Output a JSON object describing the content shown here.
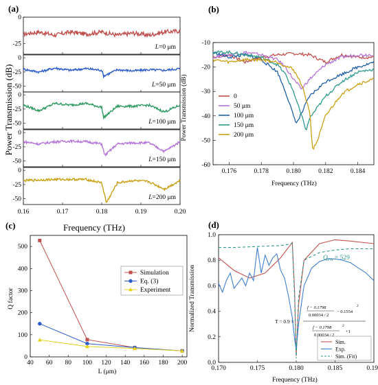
{
  "figure": {
    "panel_labels": [
      "(a)",
      "(b)",
      "(c)",
      "(d)"
    ]
  },
  "chart_data": [
    {
      "panel": "(a)",
      "type": "line",
      "xlabel": "Frequency (THz)",
      "ylabel": "Power Transmission (dB)",
      "xlim": [
        0.16,
        0.2
      ],
      "xticks": [
        "0.16",
        "0.17",
        "0.18",
        "0.19",
        "0.20"
      ],
      "subplots": [
        {
          "label": "L=0 μm",
          "color": "#c0504d",
          "ylim": [
            -35,
            0
          ],
          "yticks": [
            "0",
            "-25"
          ],
          "baseline": -15,
          "dip_at": null,
          "dip_depth": 0,
          "x": [
            0.16,
            0.164,
            0.168,
            0.172,
            0.176,
            0.18,
            0.184,
            0.188,
            0.192,
            0.196,
            0.2
          ],
          "y": [
            -16,
            -14,
            -17,
            -14,
            -16,
            -14,
            -17,
            -15,
            -17,
            -14,
            -13
          ]
        },
        {
          "label": "L=50 μm",
          "color": "#2a5cc9",
          "ylim": [
            -60,
            5
          ],
          "yticks": [
            "0",
            "-25",
            "-50"
          ],
          "baseline": -20,
          "dip_at": 0.1805,
          "dip_depth": -32,
          "x": [
            0.16,
            0.164,
            0.168,
            0.172,
            0.176,
            0.18,
            0.1805,
            0.184,
            0.188,
            0.192,
            0.196,
            0.2
          ],
          "y": [
            -20,
            -25,
            -18,
            -22,
            -19,
            -22,
            -32,
            -21,
            -23,
            -21,
            -22,
            -19
          ]
        },
        {
          "label": "L=100 μm",
          "color": "#2e9a62",
          "ylim": [
            -60,
            5
          ],
          "yticks": [
            "0",
            "-25",
            "-50"
          ],
          "baseline": -15,
          "dip_at": 0.1805,
          "dip_depth": -40,
          "x": [
            0.16,
            0.164,
            0.168,
            0.172,
            0.176,
            0.18,
            0.1805,
            0.184,
            0.188,
            0.192,
            0.196,
            0.2
          ],
          "y": [
            -18,
            -28,
            -15,
            -18,
            -15,
            -22,
            -40,
            -20,
            -20,
            -18,
            -30,
            -18
          ]
        },
        {
          "label": "L=150 μm",
          "color": "#b473d8",
          "ylim": [
            -60,
            5
          ],
          "yticks": [
            "0",
            "-25",
            "-50"
          ],
          "baseline": -15,
          "dip_at": 0.1808,
          "dip_depth": -40,
          "x": [
            0.16,
            0.164,
            0.168,
            0.172,
            0.176,
            0.18,
            0.1808,
            0.184,
            0.188,
            0.192,
            0.196,
            0.2
          ],
          "y": [
            -16,
            -20,
            -16,
            -15,
            -16,
            -20,
            -40,
            -20,
            -18,
            -18,
            -33,
            -16
          ]
        },
        {
          "label": "L=200 μm",
          "color": "#c9a015",
          "ylim": [
            -60,
            5
          ],
          "yticks": [
            "0",
            "-25",
            "-50"
          ],
          "baseline": -15,
          "dip_at": 0.1812,
          "dip_depth": -57,
          "x": [
            0.16,
            0.164,
            0.168,
            0.172,
            0.176,
            0.18,
            0.1812,
            0.184,
            0.188,
            0.192,
            0.196,
            0.2
          ],
          "y": [
            -18,
            -17,
            -16,
            -16,
            -16,
            -22,
            -57,
            -22,
            -18,
            -20,
            -33,
            -18
          ]
        }
      ]
    },
    {
      "panel": "(b)",
      "type": "line",
      "xlabel": "Frequency (THz)",
      "ylabel": "Power Transmission (dB)",
      "xlim": [
        0.175,
        0.185
      ],
      "ylim": [
        -60,
        -10
      ],
      "xticks": [
        "0.176",
        "0.178",
        "0.180",
        "0.182",
        "0.184"
      ],
      "yticks": [
        "-10",
        "-20",
        "-30",
        "-40",
        "-50",
        "-60"
      ],
      "legend_placement": "center-left",
      "series": [
        {
          "name": "0",
          "color": "#c0504d",
          "x": [
            0.175,
            0.176,
            0.177,
            0.178,
            0.179,
            0.18,
            0.181,
            0.182,
            0.183,
            0.184,
            0.185
          ],
          "y": [
            -16,
            -15,
            -18,
            -16,
            -15,
            -14.5,
            -15,
            -18,
            -15,
            -16,
            -16
          ]
        },
        {
          "name": "50 μm",
          "color": "#b473d8",
          "x": [
            0.175,
            0.176,
            0.177,
            0.178,
            0.179,
            0.1795,
            0.18,
            0.1805,
            0.181,
            0.182,
            0.183,
            0.184,
            0.185
          ],
          "y": [
            -16,
            -15,
            -14,
            -15,
            -17,
            -20,
            -25,
            -29,
            -25,
            -19,
            -16,
            -15,
            -15
          ]
        },
        {
          "name": "100 μm",
          "color": "#1f5fa8",
          "x": [
            0.175,
            0.176,
            0.177,
            0.178,
            0.179,
            0.1795,
            0.18,
            0.1802,
            0.1805,
            0.181,
            0.182,
            0.183,
            0.184,
            0.185
          ],
          "y": [
            -14,
            -16,
            -15,
            -17,
            -22,
            -30,
            -40,
            -43,
            -39,
            -32,
            -26,
            -23,
            -20,
            -18
          ]
        },
        {
          "name": "150 μm",
          "color": "#2e9a8e",
          "x": [
            0.175,
            0.176,
            0.177,
            0.178,
            0.179,
            0.1795,
            0.18,
            0.1805,
            0.1808,
            0.181,
            0.182,
            0.183,
            0.184,
            0.185
          ],
          "y": [
            -14,
            -14,
            -15,
            -16,
            -19,
            -23,
            -30,
            -40,
            -46,
            -41,
            -32,
            -26,
            -22,
            -21
          ]
        },
        {
          "name": "200 μm",
          "color": "#c9a015",
          "x": [
            0.175,
            0.176,
            0.177,
            0.178,
            0.179,
            0.18,
            0.1805,
            0.181,
            0.1812,
            0.1815,
            0.182,
            0.183,
            0.184,
            0.185
          ],
          "y": [
            -17,
            -18,
            -17,
            -17,
            -18,
            -21,
            -27,
            -38,
            -54,
            -50,
            -40,
            -31,
            -27,
            -25
          ]
        }
      ]
    },
    {
      "panel": "(c)",
      "type": "line",
      "xlabel": "L (μm)",
      "ylabel": "Q factor",
      "xlim": [
        40,
        205
      ],
      "ylim": [
        0,
        550
      ],
      "xticks": [
        "40",
        "60",
        "80",
        "100",
        "120",
        "140",
        "160",
        "180",
        "200"
      ],
      "yticks": [
        "0",
        "100",
        "200",
        "300",
        "400",
        "500"
      ],
      "legend_placement": "center-right",
      "series": [
        {
          "name": "Simulation",
          "color": "#c0504d",
          "marker": "square",
          "x": [
            50,
            100,
            150,
            200
          ],
          "y": [
            527,
            78,
            42,
            27
          ]
        },
        {
          "name": "Eq. (3)",
          "color": "#2a5cc9",
          "marker": "circle",
          "x": [
            50,
            100,
            150,
            200
          ],
          "y": [
            150,
            60,
            42,
            27
          ]
        },
        {
          "name": "Experiment",
          "color": "#e6d21a",
          "marker": "triangle",
          "x": [
            50,
            100,
            150,
            200
          ],
          "y": [
            77,
            47,
            38,
            27
          ]
        }
      ]
    },
    {
      "panel": "(d)",
      "type": "line",
      "xlabel": "Frequency (THz)",
      "ylabel": "Normalized Transmission",
      "xlim": [
        0.17,
        0.19
      ],
      "ylim": [
        0,
        1.0
      ],
      "xticks": [
        "0.170",
        "0.175",
        "0.180",
        "0.185",
        "0.190"
      ],
      "yticks": [
        "0.0",
        "0.2",
        "0.4",
        "0.6",
        "0.8",
        "1.0"
      ],
      "legend_placement": "bottom-right",
      "annotations": {
        "q_label": "Q",
        "q_sub": "Fit",
        "q_value": "= 529",
        "formula_prefix": "T = 0.9 ×",
        "formula_num_top": "f − 0.1798",
        "formula_num_bottom": "0.00034 / 2",
        "formula_num_tail": "− 0.1554",
        "formula_den_top": "f − 0.1798",
        "formula_den_bottom": "0.00034 / 2",
        "formula_den_tail": "+1",
        "exponent": "2"
      },
      "series": [
        {
          "name": "Sim.",
          "color": "#c0504d",
          "x": [
            0.17,
            0.172,
            0.174,
            0.176,
            0.178,
            0.179,
            0.1795,
            0.1798,
            0.18,
            0.1803,
            0.181,
            0.183,
            0.185,
            0.187,
            0.19
          ],
          "y": [
            0.82,
            0.72,
            0.66,
            0.7,
            0.82,
            0.9,
            0.94,
            0.55,
            0.05,
            0.45,
            0.8,
            0.93,
            0.96,
            0.95,
            0.93
          ]
        },
        {
          "name": "Exp.",
          "color": "#3f7fd0",
          "x": [
            0.17,
            0.1705,
            0.171,
            0.1715,
            0.172,
            0.1725,
            0.173,
            0.1735,
            0.174,
            0.1745,
            0.175,
            0.1755,
            0.176,
            0.1765,
            0.177,
            0.1775,
            0.178,
            0.1785,
            0.179,
            0.1795,
            0.1798,
            0.18,
            0.1803,
            0.181,
            0.182,
            0.183,
            0.184,
            0.185,
            0.186,
            0.187,
            0.188,
            0.189,
            0.19
          ],
          "y": [
            0.62,
            0.55,
            0.64,
            0.7,
            0.58,
            0.62,
            0.66,
            0.6,
            0.7,
            0.64,
            0.9,
            0.7,
            0.84,
            0.76,
            0.82,
            0.85,
            0.72,
            0.66,
            0.52,
            0.35,
            0.18,
            0.1,
            0.3,
            0.6,
            0.74,
            0.79,
            0.81,
            0.81,
            0.8,
            0.78,
            0.74,
            0.7,
            0.64
          ]
        },
        {
          "name": "Sim. (Fit)",
          "color": "#2e9a8e",
          "dashed": true,
          "x": [
            0.17,
            0.172,
            0.174,
            0.176,
            0.178,
            0.179,
            0.1795,
            0.1798,
            0.18,
            0.1803,
            0.181,
            0.183,
            0.185,
            0.187,
            0.19
          ],
          "y": [
            0.9,
            0.9,
            0.905,
            0.91,
            0.915,
            0.925,
            0.93,
            0.5,
            0.03,
            0.5,
            0.8,
            0.86,
            0.88,
            0.89,
            0.89
          ]
        }
      ]
    }
  ]
}
